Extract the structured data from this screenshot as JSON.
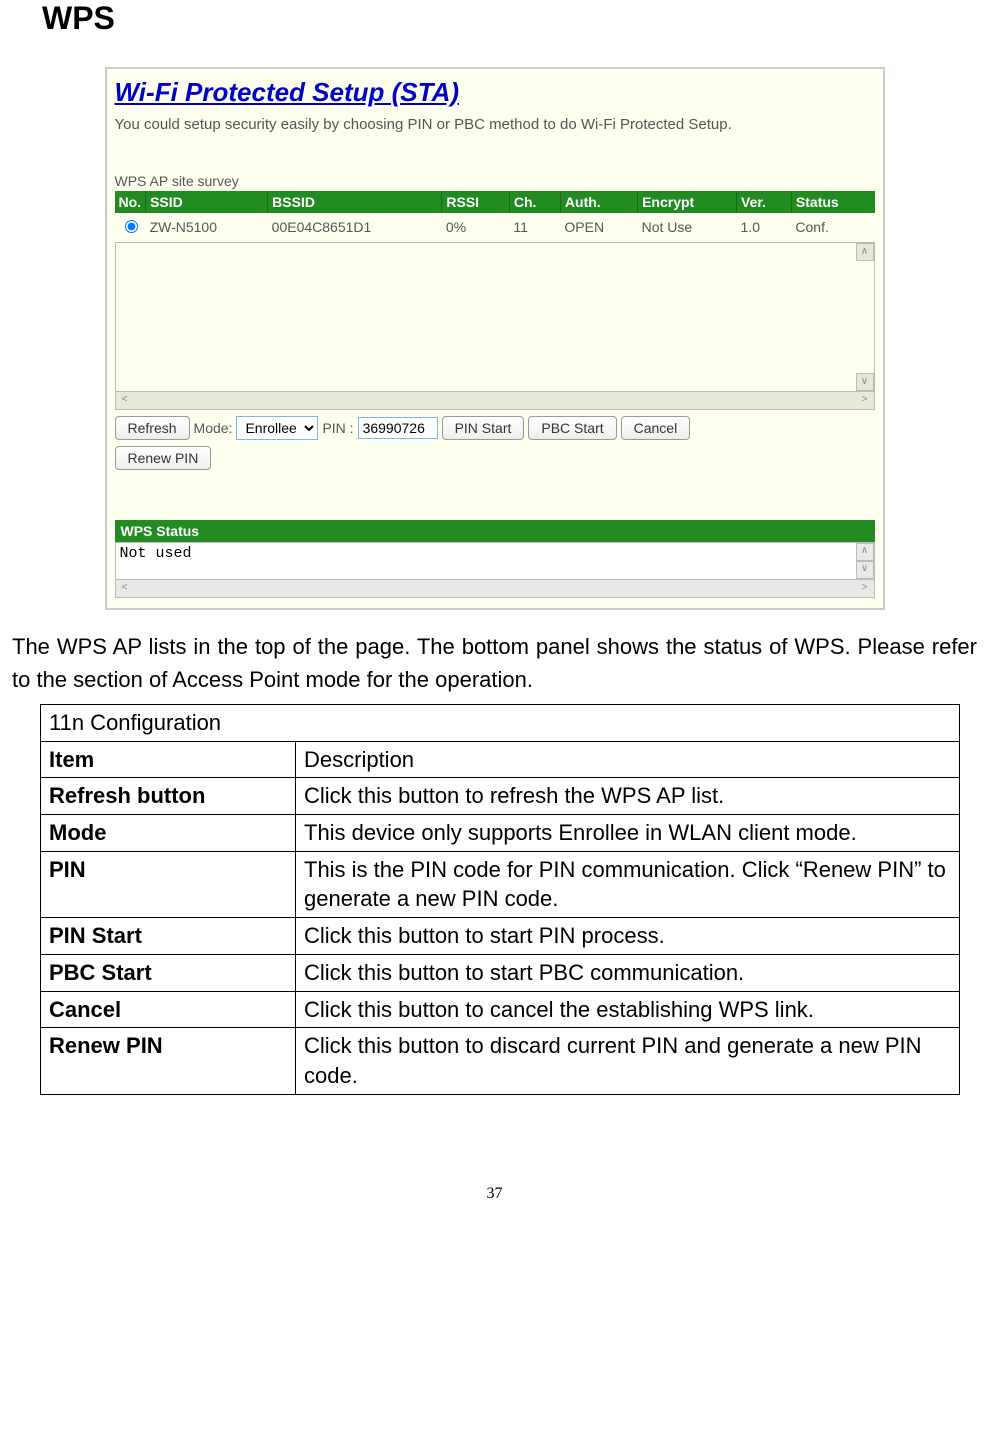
{
  "heading": "WPS",
  "panel": {
    "title": "Wi-Fi Protected Setup (STA)",
    "description": "You could setup security easily by choosing PIN or PBC method to do Wi-Fi Protected Setup.",
    "survey_label": "WPS AP site survey",
    "columns": [
      "No.",
      "SSID",
      "BSSID",
      "RSSI",
      "Ch.",
      "Auth.",
      "Encrypt",
      "Ver.",
      "Status"
    ],
    "row": {
      "ssid": "ZW-N5100",
      "bssid": "00E04C8651D1",
      "rssi": "0%",
      "ch": "11",
      "auth": "OPEN",
      "encrypt": "Not Use",
      "ver": "1.0",
      "status": "Conf."
    },
    "controls": {
      "refresh": "Refresh",
      "mode_label": "Mode:",
      "mode_value": "Enrollee",
      "pin_label": "PIN :",
      "pin_value": "36990726",
      "pin_start": "PIN Start",
      "pbc_start": "PBC Start",
      "cancel": "Cancel",
      "renew_pin": "Renew PIN"
    },
    "status_header": "WPS Status",
    "status_text": "Not used"
  },
  "body_text": "The WPS AP lists in the top of the page. The bottom panel shows the status of WPS. Please refer to the section of Access Point mode for the operation.",
  "config": {
    "title": "11n Configuration",
    "header_item": "Item",
    "header_desc": "Description",
    "rows": [
      {
        "item": "Refresh button",
        "desc": "Click this button to refresh the WPS AP list."
      },
      {
        "item": "Mode",
        "desc": "This device only supports Enrollee in WLAN client mode."
      },
      {
        "item": "PIN",
        "desc": "This is the PIN code for PIN communication. Click “Renew PIN” to generate a new PIN code."
      },
      {
        "item": "PIN Start",
        "desc": "Click this button to start PIN process."
      },
      {
        "item": "PBC Start",
        "desc": "Click this button to start PBC communication."
      },
      {
        "item": "Cancel",
        "desc": "Click this button to cancel the establishing WPS link."
      },
      {
        "item": "Renew PIN",
        "desc": "Click this button to discard current PIN and generate a new PIN code."
      }
    ]
  },
  "page_number": "37"
}
